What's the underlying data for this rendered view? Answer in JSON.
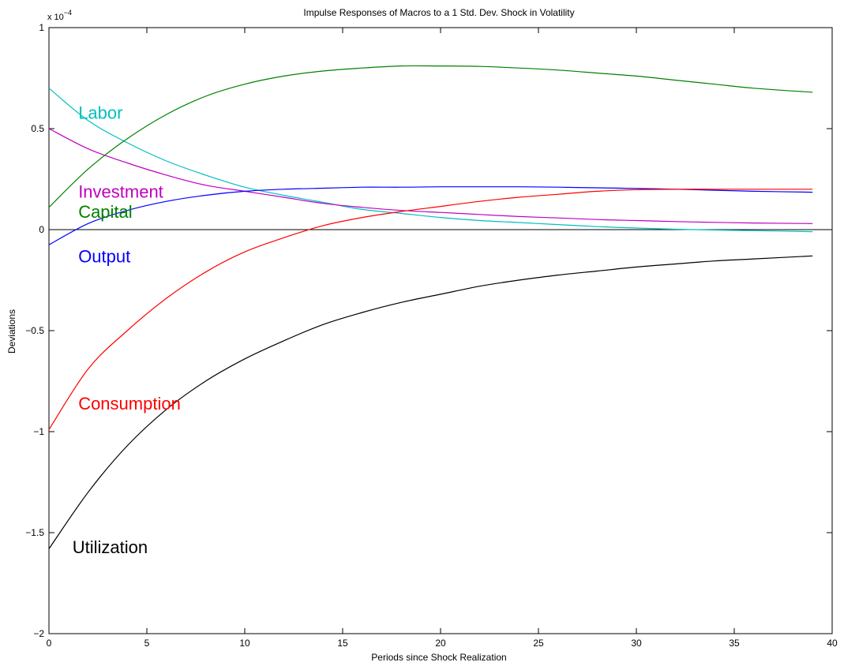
{
  "chart_data": {
    "type": "line",
    "title": "Impulse Responses of  Macros to a 1 Std. Dev. Shock in Volatility",
    "xlabel": "Periods since Shock Realization",
    "ylabel": "Deviations",
    "y_exponent_label": "x 10",
    "y_exponent_power": "−4",
    "xlim": [
      0,
      40
    ],
    "ylim": [
      -2,
      1
    ],
    "x_ticks": [
      0,
      5,
      10,
      15,
      20,
      25,
      30,
      35,
      40
    ],
    "x_tick_labels": [
      "0",
      "5",
      "10",
      "15",
      "20",
      "25",
      "30",
      "35",
      "40"
    ],
    "y_ticks": [
      -2,
      -1.5,
      -1,
      -0.5,
      0,
      0.5,
      1
    ],
    "y_tick_labels": [
      "−2",
      "−1.5",
      "−1",
      "−0.5",
      "0",
      "0.5",
      "1"
    ],
    "grid": false,
    "zero_line": true,
    "series": [
      {
        "name": "Labor",
        "color": "#00bfbf",
        "x": [
          0,
          2,
          4,
          6,
          8,
          10,
          12,
          14,
          16,
          18,
          20,
          22,
          24,
          26,
          28,
          30,
          32,
          34,
          36,
          39
        ],
        "y": [
          0.7,
          0.54,
          0.43,
          0.34,
          0.27,
          0.21,
          0.17,
          0.135,
          0.1,
          0.08,
          0.06,
          0.045,
          0.035,
          0.025,
          0.015,
          0.008,
          0.002,
          -0.002,
          -0.005,
          -0.01
        ]
      },
      {
        "name": "Investment",
        "color": "#bf00bf",
        "x": [
          0,
          2,
          4,
          6,
          8,
          10,
          12,
          14,
          16,
          18,
          20,
          22,
          24,
          26,
          28,
          30,
          32,
          34,
          36,
          39
        ],
        "y": [
          0.5,
          0.4,
          0.33,
          0.27,
          0.22,
          0.19,
          0.16,
          0.13,
          0.11,
          0.095,
          0.085,
          0.075,
          0.065,
          0.058,
          0.05,
          0.045,
          0.04,
          0.036,
          0.033,
          0.03
        ]
      },
      {
        "name": "Capital",
        "color": "#008000",
        "x": [
          0,
          2,
          4,
          6,
          8,
          10,
          12,
          14,
          16,
          18,
          20,
          22,
          24,
          26,
          28,
          30,
          32,
          34,
          36,
          39
        ],
        "y": [
          0.11,
          0.3,
          0.45,
          0.57,
          0.66,
          0.72,
          0.76,
          0.785,
          0.8,
          0.81,
          0.81,
          0.808,
          0.8,
          0.79,
          0.775,
          0.76,
          0.74,
          0.72,
          0.7,
          0.68
        ]
      },
      {
        "name": "Output",
        "color": "#0000ff",
        "x": [
          0,
          2,
          4,
          6,
          8,
          10,
          12,
          14,
          16,
          18,
          20,
          22,
          24,
          26,
          28,
          30,
          32,
          34,
          36,
          39
        ],
        "y": [
          -0.075,
          0.03,
          0.095,
          0.14,
          0.17,
          0.19,
          0.2,
          0.205,
          0.21,
          0.21,
          0.212,
          0.212,
          0.212,
          0.21,
          0.207,
          0.204,
          0.2,
          0.195,
          0.19,
          0.185
        ]
      },
      {
        "name": "Consumption",
        "color": "#ff0000",
        "x": [
          0,
          2,
          4,
          6,
          8,
          10,
          12,
          14,
          16,
          18,
          20,
          22,
          24,
          26,
          28,
          30,
          32,
          34,
          36,
          39
        ],
        "y": [
          -0.99,
          -0.69,
          -0.5,
          -0.34,
          -0.21,
          -0.11,
          -0.04,
          0.02,
          0.06,
          0.09,
          0.115,
          0.14,
          0.16,
          0.175,
          0.19,
          0.198,
          0.2,
          0.2,
          0.2,
          0.2
        ]
      },
      {
        "name": "Utilization",
        "color": "#000000",
        "x": [
          0,
          2,
          4,
          6,
          8,
          10,
          12,
          14,
          16,
          18,
          20,
          22,
          24,
          26,
          28,
          30,
          32,
          34,
          36,
          39
        ],
        "y": [
          -1.58,
          -1.3,
          -1.07,
          -0.89,
          -0.75,
          -0.64,
          -0.55,
          -0.47,
          -0.41,
          -0.36,
          -0.32,
          -0.28,
          -0.25,
          -0.225,
          -0.205,
          -0.185,
          -0.17,
          -0.155,
          -0.145,
          -0.13
        ]
      }
    ],
    "annotations": [
      {
        "text": "Labor",
        "color": "#00bfbf",
        "x": 1.5,
        "y": 0.58
      },
      {
        "text": "Investment",
        "color": "#bf00bf",
        "x": 1.5,
        "y": 0.19
      },
      {
        "text": "Capital",
        "color": "#008000",
        "x": 1.5,
        "y": 0.09
      },
      {
        "text": "Output",
        "color": "#0000ff",
        "x": 1.5,
        "y": -0.13
      },
      {
        "text": "Consumption",
        "color": "#ff0000",
        "x": 1.5,
        "y": -0.86
      },
      {
        "text": "Utilization",
        "color": "#000000",
        "x": 1.2,
        "y": -1.57
      }
    ]
  }
}
